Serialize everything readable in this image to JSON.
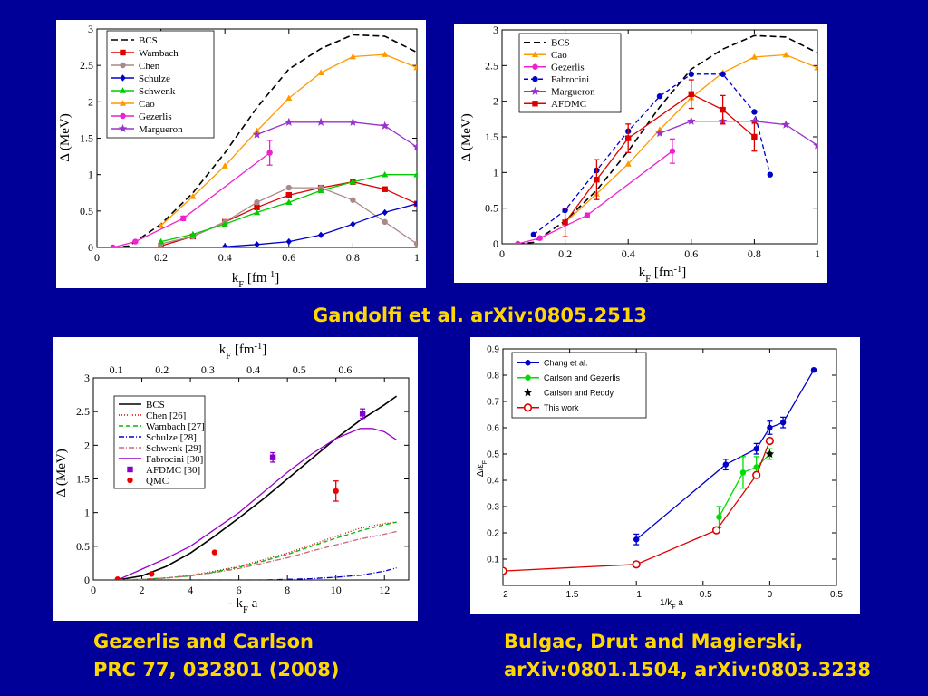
{
  "captions": {
    "top": "Gandolfi et al. arXiv:0805.2513",
    "bl_line1": "Gezerlis and Carlson",
    "bl_line2": "PRC  77, 032801 (2008)",
    "br_line1": "Bulgac, Drut and Magierski,",
    "br_line2": "arXiv:0801.1504, arXiv:0803.3238"
  },
  "chart_data": [
    {
      "id": "p1",
      "type": "line",
      "xlabel": "k_F [fm^-1]",
      "ylabel": "Δ (MeV)",
      "xlim": [
        0,
        1
      ],
      "ylim": [
        0,
        3
      ],
      "xticks": [
        0,
        0.2,
        0.4,
        0.6,
        0.8,
        1
      ],
      "xticklabels": [
        "0",
        "0.2",
        "0.4",
        "0.6",
        "0.8",
        "1"
      ],
      "yticks": [
        0,
        0.5,
        1,
        1.5,
        2,
        2.5,
        3
      ],
      "yticklabels": [
        "0",
        "0.5",
        "1",
        "1.5",
        "2",
        "2.5",
        "3"
      ],
      "legend": "top-left",
      "series": [
        {
          "name": "BCS",
          "color": "#000000",
          "dash": "7,4",
          "marker": "none",
          "x": [
            0.05,
            0.1,
            0.2,
            0.3,
            0.4,
            0.5,
            0.6,
            0.7,
            0.8,
            0.9,
            1.0
          ],
          "y": [
            0,
            0.02,
            0.32,
            0.75,
            1.3,
            1.92,
            2.45,
            2.73,
            2.92,
            2.9,
            2.68
          ]
        },
        {
          "name": "Wambach",
          "color": "#dd0000",
          "marker": "square",
          "x": [
            0.2,
            0.3,
            0.4,
            0.5,
            0.6,
            0.7,
            0.8,
            0.9,
            1.0
          ],
          "y": [
            0.02,
            0.15,
            0.35,
            0.55,
            0.72,
            0.82,
            0.9,
            0.8,
            0.6
          ]
        },
        {
          "name": "Chen",
          "color": "#aa8888",
          "marker": "circle",
          "x": [
            0.2,
            0.3,
            0.4,
            0.5,
            0.6,
            0.7,
            0.8,
            0.9,
            1.0
          ],
          "y": [
            0.05,
            0.15,
            0.35,
            0.62,
            0.82,
            0.82,
            0.65,
            0.35,
            0.05
          ]
        },
        {
          "name": "Schulze",
          "color": "#0000cc",
          "marker": "diamond",
          "x": [
            0.4,
            0.5,
            0.6,
            0.7,
            0.8,
            0.9,
            1.0
          ],
          "y": [
            0.01,
            0.04,
            0.08,
            0.17,
            0.32,
            0.48,
            0.6
          ]
        },
        {
          "name": "Schwenk",
          "color": "#00cc00",
          "marker": "triangle",
          "x": [
            0.2,
            0.3,
            0.4,
            0.5,
            0.6,
            0.7,
            0.8,
            0.9,
            1.0
          ],
          "y": [
            0.08,
            0.18,
            0.32,
            0.48,
            0.62,
            0.78,
            0.9,
            1.0,
            1.0
          ]
        },
        {
          "name": "Cao",
          "color": "#ff9900",
          "marker": "triangle",
          "x": [
            0.2,
            0.3,
            0.4,
            0.5,
            0.6,
            0.7,
            0.8,
            0.9,
            1.0
          ],
          "y": [
            0.3,
            0.7,
            1.12,
            1.6,
            2.05,
            2.4,
            2.62,
            2.65,
            2.47
          ]
        },
        {
          "name": "Gezerlis",
          "color": "#ee22cc",
          "marker": "circle",
          "x": [
            0.05,
            0.12,
            0.27,
            0.54
          ],
          "y": [
            0,
            0.08,
            0.4,
            1.3
          ],
          "yerr": [
            0,
            0,
            0.03,
            0.17
          ]
        },
        {
          "name": "Margueron",
          "color": "#9933cc",
          "marker": "star",
          "x": [
            0.5,
            0.6,
            0.7,
            0.8,
            0.9,
            1.0
          ],
          "y": [
            1.55,
            1.72,
            1.72,
            1.72,
            1.67,
            1.38
          ]
        }
      ]
    },
    {
      "id": "p2",
      "type": "line",
      "xlabel": "k_F [fm^-1]",
      "ylabel": "Δ (MeV)",
      "xlim": [
        0,
        1
      ],
      "ylim": [
        0,
        3
      ],
      "xticks": [
        0,
        0.2,
        0.4,
        0.6,
        0.8,
        1
      ],
      "xticklabels": [
        "0",
        "0.2",
        "0.4",
        "0.6",
        "0.8",
        "1"
      ],
      "yticks": [
        0,
        0.5,
        1,
        1.5,
        2,
        2.5,
        3
      ],
      "yticklabels": [
        "0",
        "0.5",
        "1",
        "1.5",
        "2",
        "2.5",
        "3"
      ],
      "legend": "top-left",
      "series": [
        {
          "name": "BCS",
          "color": "#000000",
          "dash": "7,4",
          "marker": "none",
          "x": [
            0.05,
            0.1,
            0.2,
            0.3,
            0.4,
            0.5,
            0.6,
            0.7,
            0.8,
            0.9,
            1.0
          ],
          "y": [
            0,
            0.02,
            0.32,
            0.75,
            1.3,
            1.92,
            2.45,
            2.73,
            2.92,
            2.9,
            2.68
          ]
        },
        {
          "name": "Cao",
          "color": "#ff9900",
          "marker": "triangle",
          "x": [
            0.2,
            0.3,
            0.4,
            0.5,
            0.6,
            0.7,
            0.8,
            0.9,
            1.0
          ],
          "y": [
            0.3,
            0.7,
            1.12,
            1.6,
            2.05,
            2.4,
            2.62,
            2.65,
            2.47
          ]
        },
        {
          "name": "Gezerlis",
          "color": "#ee22cc",
          "marker": "circle",
          "x": [
            0.05,
            0.12,
            0.27,
            0.54
          ],
          "y": [
            0,
            0.08,
            0.4,
            1.3
          ],
          "yerr": [
            0,
            0,
            0.03,
            0.17
          ]
        },
        {
          "name": "Fabrocini",
          "color": "#0000cc",
          "dash": "5,3",
          "marker": "circle",
          "x": [
            0.1,
            0.2,
            0.3,
            0.4,
            0.5,
            0.6,
            0.7,
            0.8,
            0.85
          ],
          "y": [
            0.13,
            0.47,
            1.03,
            1.58,
            2.07,
            2.38,
            2.38,
            1.85,
            0.97
          ]
        },
        {
          "name": "Margueron",
          "color": "#9933cc",
          "marker": "star",
          "x": [
            0.5,
            0.6,
            0.7,
            0.8,
            0.9,
            1.0
          ],
          "y": [
            1.55,
            1.72,
            1.72,
            1.72,
            1.67,
            1.38
          ]
        },
        {
          "name": "AFDMC",
          "color": "#dd0000",
          "marker": "square",
          "x": [
            0.2,
            0.3,
            0.4,
            0.6,
            0.7,
            0.8
          ],
          "y": [
            0.3,
            0.9,
            1.48,
            2.1,
            1.88,
            1.5
          ],
          "yerr": [
            0.2,
            0.28,
            0.2,
            0.2,
            0.2,
            0.2
          ]
        }
      ]
    },
    {
      "id": "p3",
      "type": "line",
      "xlabel": "- k_F a",
      "ylabel": "Δ (MeV)",
      "x2label": "k_F [fm^-1]",
      "xlim": [
        0,
        13
      ],
      "ylim": [
        0,
        3
      ],
      "xticks": [
        0,
        2,
        4,
        6,
        8,
        10,
        12
      ],
      "xticklabels": [
        "0",
        "2",
        "4",
        "6",
        "8",
        "10",
        "12"
      ],
      "yticks": [
        0,
        0.5,
        1,
        1.5,
        2,
        2.5,
        3
      ],
      "yticklabels": [
        "0",
        "0.5",
        "1",
        "1.5",
        "2",
        "2.5",
        "3"
      ],
      "x2ticks_at_x": [
        0.94,
        2.83,
        4.72,
        6.6,
        8.49,
        10.38
      ],
      "x2ticklabels": [
        "0.1",
        "0.2",
        "0.3",
        "0.4",
        "0.5",
        "0.6"
      ],
      "legend": "top-left",
      "series": [
        {
          "name": "BCS",
          "color": "#000000",
          "marker": "none",
          "x": [
            1,
            2,
            3,
            4,
            5,
            6,
            7,
            8,
            9,
            10,
            11,
            12,
            12.5
          ],
          "y": [
            0,
            0.06,
            0.2,
            0.4,
            0.65,
            0.92,
            1.2,
            1.5,
            1.8,
            2.1,
            2.37,
            2.6,
            2.73
          ]
        },
        {
          "name": "Chen [26]",
          "color": "#dd0000",
          "dash": "1,2",
          "marker": "none",
          "x": [
            1,
            2,
            3,
            4,
            5,
            6,
            7,
            8,
            9,
            10,
            11,
            12,
            12.5
          ],
          "y": [
            0,
            0.01,
            0.03,
            0.07,
            0.13,
            0.2,
            0.3,
            0.4,
            0.52,
            0.65,
            0.77,
            0.84,
            0.86
          ]
        },
        {
          "name": "Wambach [27]",
          "color": "#00bb00",
          "dash": "5,3",
          "marker": "none",
          "x": [
            1,
            2,
            3,
            4,
            5,
            6,
            7,
            8,
            9,
            10,
            11,
            12,
            12.5
          ],
          "y": [
            0,
            0.01,
            0.03,
            0.06,
            0.12,
            0.19,
            0.28,
            0.38,
            0.5,
            0.62,
            0.73,
            0.82,
            0.86
          ]
        },
        {
          "name": "Schulze [28]",
          "color": "#0000cc",
          "dash": "6,2,1,2",
          "marker": "none",
          "x": [
            1,
            2,
            3,
            4,
            5,
            6,
            7,
            8,
            9,
            10,
            11,
            12,
            12.5
          ],
          "y": [
            0,
            0,
            0,
            0,
            0,
            0,
            0,
            0.01,
            0.02,
            0.04,
            0.07,
            0.13,
            0.18
          ]
        },
        {
          "name": "Schwenk [29]",
          "color": "#cc6677",
          "dash": "6,2,1,2",
          "marker": "none",
          "x": [
            1,
            2,
            3,
            4,
            5,
            6,
            7,
            8,
            9,
            10,
            11,
            12,
            12.5
          ],
          "y": [
            0,
            0.01,
            0.03,
            0.06,
            0.11,
            0.17,
            0.25,
            0.33,
            0.43,
            0.52,
            0.61,
            0.68,
            0.72
          ]
        },
        {
          "name": "Fabrocini [30]",
          "color": "#9900cc",
          "marker": "none",
          "x": [
            1,
            2,
            3,
            4,
            5,
            6,
            7,
            8,
            9,
            10,
            11,
            11.5,
            12,
            12.5
          ],
          "y": [
            0,
            0.16,
            0.32,
            0.5,
            0.75,
            1.0,
            1.3,
            1.6,
            1.87,
            2.1,
            2.25,
            2.25,
            2.2,
            2.08
          ]
        },
        {
          "name": "AFDMC [30]",
          "color": "#8800cc",
          "marker": "square",
          "line": false,
          "x": [
            7.4,
            11.1
          ],
          "y": [
            1.82,
            2.47
          ],
          "yerr": [
            0.07,
            0.07
          ]
        },
        {
          "name": "QMC",
          "color": "#ee0000",
          "marker": "circle",
          "line": false,
          "x": [
            1.0,
            2.4,
            5.0,
            10.0
          ],
          "y": [
            0.01,
            0.09,
            0.41,
            1.32
          ],
          "yerr": [
            0,
            0,
            0,
            0.15
          ]
        }
      ]
    },
    {
      "id": "p4",
      "type": "line",
      "xlabel": "1/k_F a",
      "ylabel": "Δ/ε_F",
      "xlim": [
        -2,
        0.5
      ],
      "ylim": [
        0,
        0.9
      ],
      "xticks": [
        -2,
        -1.5,
        -1,
        -0.5,
        0,
        0.5
      ],
      "xticklabels": [
        "−2",
        "−1.5",
        "−1",
        "−0.5",
        "0",
        "0.5"
      ],
      "yticks": [
        0.1,
        0.2,
        0.3,
        0.4,
        0.5,
        0.6,
        0.7,
        0.8,
        0.9
      ],
      "yticklabels": [
        "0.1",
        "0.2",
        "0.3",
        "0.4",
        "0.5",
        "0.6",
        "0.7",
        "0.8",
        "0.9"
      ],
      "legend": "top-left",
      "series": [
        {
          "name": "Chang et al.",
          "color": "#0000cc",
          "marker": "circle",
          "x": [
            -1,
            -0.33,
            -0.1,
            0,
            0.1,
            0.33
          ],
          "y": [
            0.175,
            0.46,
            0.52,
            0.6,
            0.62,
            0.82
          ],
          "yerr": [
            0.02,
            0.02,
            0.02,
            0.025,
            0.02,
            0
          ]
        },
        {
          "name": "Carlson and Gezerlis",
          "color": "#00dd00",
          "marker": "circle",
          "x": [
            -0.38,
            -0.2,
            -0.1,
            0
          ],
          "y": [
            0.26,
            0.43,
            0.45,
            0.5
          ],
          "yerr": [
            0.04,
            0.06,
            0.04,
            0.02
          ]
        },
        {
          "name": "Carlson and Reddy",
          "color": "#000000",
          "marker": "star",
          "line": false,
          "x": [
            0
          ],
          "y": [
            0.5
          ]
        },
        {
          "name": "This work",
          "color": "#dd0000",
          "marker": "circle-open",
          "x": [
            -2,
            -1,
            -0.4,
            -0.1,
            0
          ],
          "y": [
            0.055,
            0.08,
            0.21,
            0.42,
            0.55
          ]
        }
      ]
    }
  ]
}
